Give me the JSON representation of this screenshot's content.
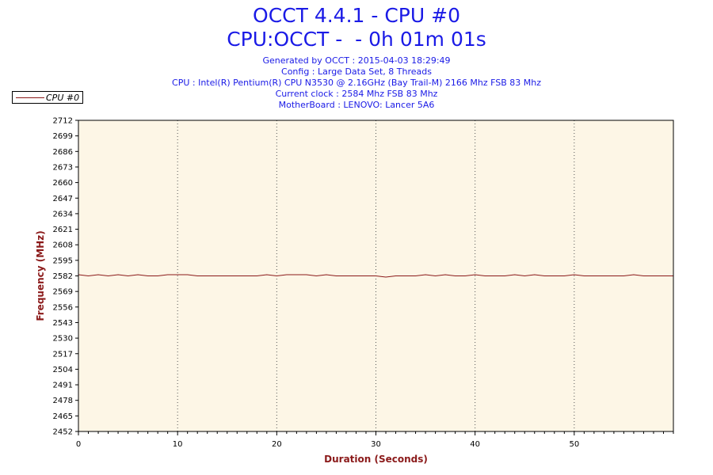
{
  "header": {
    "title": "OCCT 4.4.1 - CPU #0",
    "subtitle": "CPU:OCCT -  - 0h 01m 01s",
    "info_lines": [
      "Generated by OCCT : 2015-04-03 18:29:49",
      "Config : Large Data Set, 8 Threads",
      "CPU : Intel(R) Pentium(R) CPU N3530 @ 2.16GHz (Bay Trail-M) 2166 Mhz FSB 83 Mhz",
      "Current clock : 2584 Mhz FSB 83 Mhz",
      "MotherBoard : LENOVO: Lancer 5A6"
    ]
  },
  "colors": {
    "title": "#1a1ae6",
    "axis_title": "#8b1a1a",
    "series": "#8b1a1a",
    "plot_bg": "#fdf6e6"
  },
  "chart_data": {
    "type": "line",
    "xlabel": "Duration (Seconds)",
    "ylabel": "Frequency (MHz)",
    "xlim": [
      0,
      60
    ],
    "ylim": [
      2452,
      2712
    ],
    "x_ticks": [
      0,
      10,
      20,
      30,
      40,
      50
    ],
    "y_ticks": [
      2452,
      2465,
      2478,
      2491,
      2504,
      2517,
      2530,
      2543,
      2556,
      2569,
      2582,
      2595,
      2608,
      2621,
      2634,
      2647,
      2660,
      2673,
      2686,
      2699,
      2712
    ],
    "grid": "vertical-dotted",
    "legend_position": "top-left",
    "series": [
      {
        "name": "CPU #0",
        "x": [
          0,
          1,
          2,
          3,
          4,
          5,
          6,
          7,
          8,
          9,
          10,
          11,
          12,
          13,
          14,
          15,
          16,
          17,
          18,
          19,
          20,
          21,
          22,
          23,
          24,
          25,
          26,
          27,
          28,
          29,
          30,
          31,
          32,
          33,
          34,
          35,
          36,
          37,
          38,
          39,
          40,
          41,
          42,
          43,
          44,
          45,
          46,
          47,
          48,
          49,
          50,
          51,
          52,
          53,
          54,
          55,
          56,
          57,
          58,
          59,
          60
        ],
        "values": [
          2583,
          2582,
          2583,
          2582,
          2583,
          2582,
          2583,
          2582,
          2582,
          2583,
          2583,
          2583,
          2582,
          2582,
          2582,
          2582,
          2582,
          2582,
          2582,
          2583,
          2582,
          2583,
          2583,
          2583,
          2582,
          2583,
          2582,
          2582,
          2582,
          2582,
          2582,
          2581,
          2582,
          2582,
          2582,
          2583,
          2582,
          2583,
          2582,
          2582,
          2583,
          2582,
          2582,
          2582,
          2583,
          2582,
          2583,
          2582,
          2582,
          2582,
          2583,
          2582,
          2582,
          2582,
          2582,
          2582,
          2583,
          2582,
          2582,
          2582,
          2582
        ]
      }
    ]
  }
}
